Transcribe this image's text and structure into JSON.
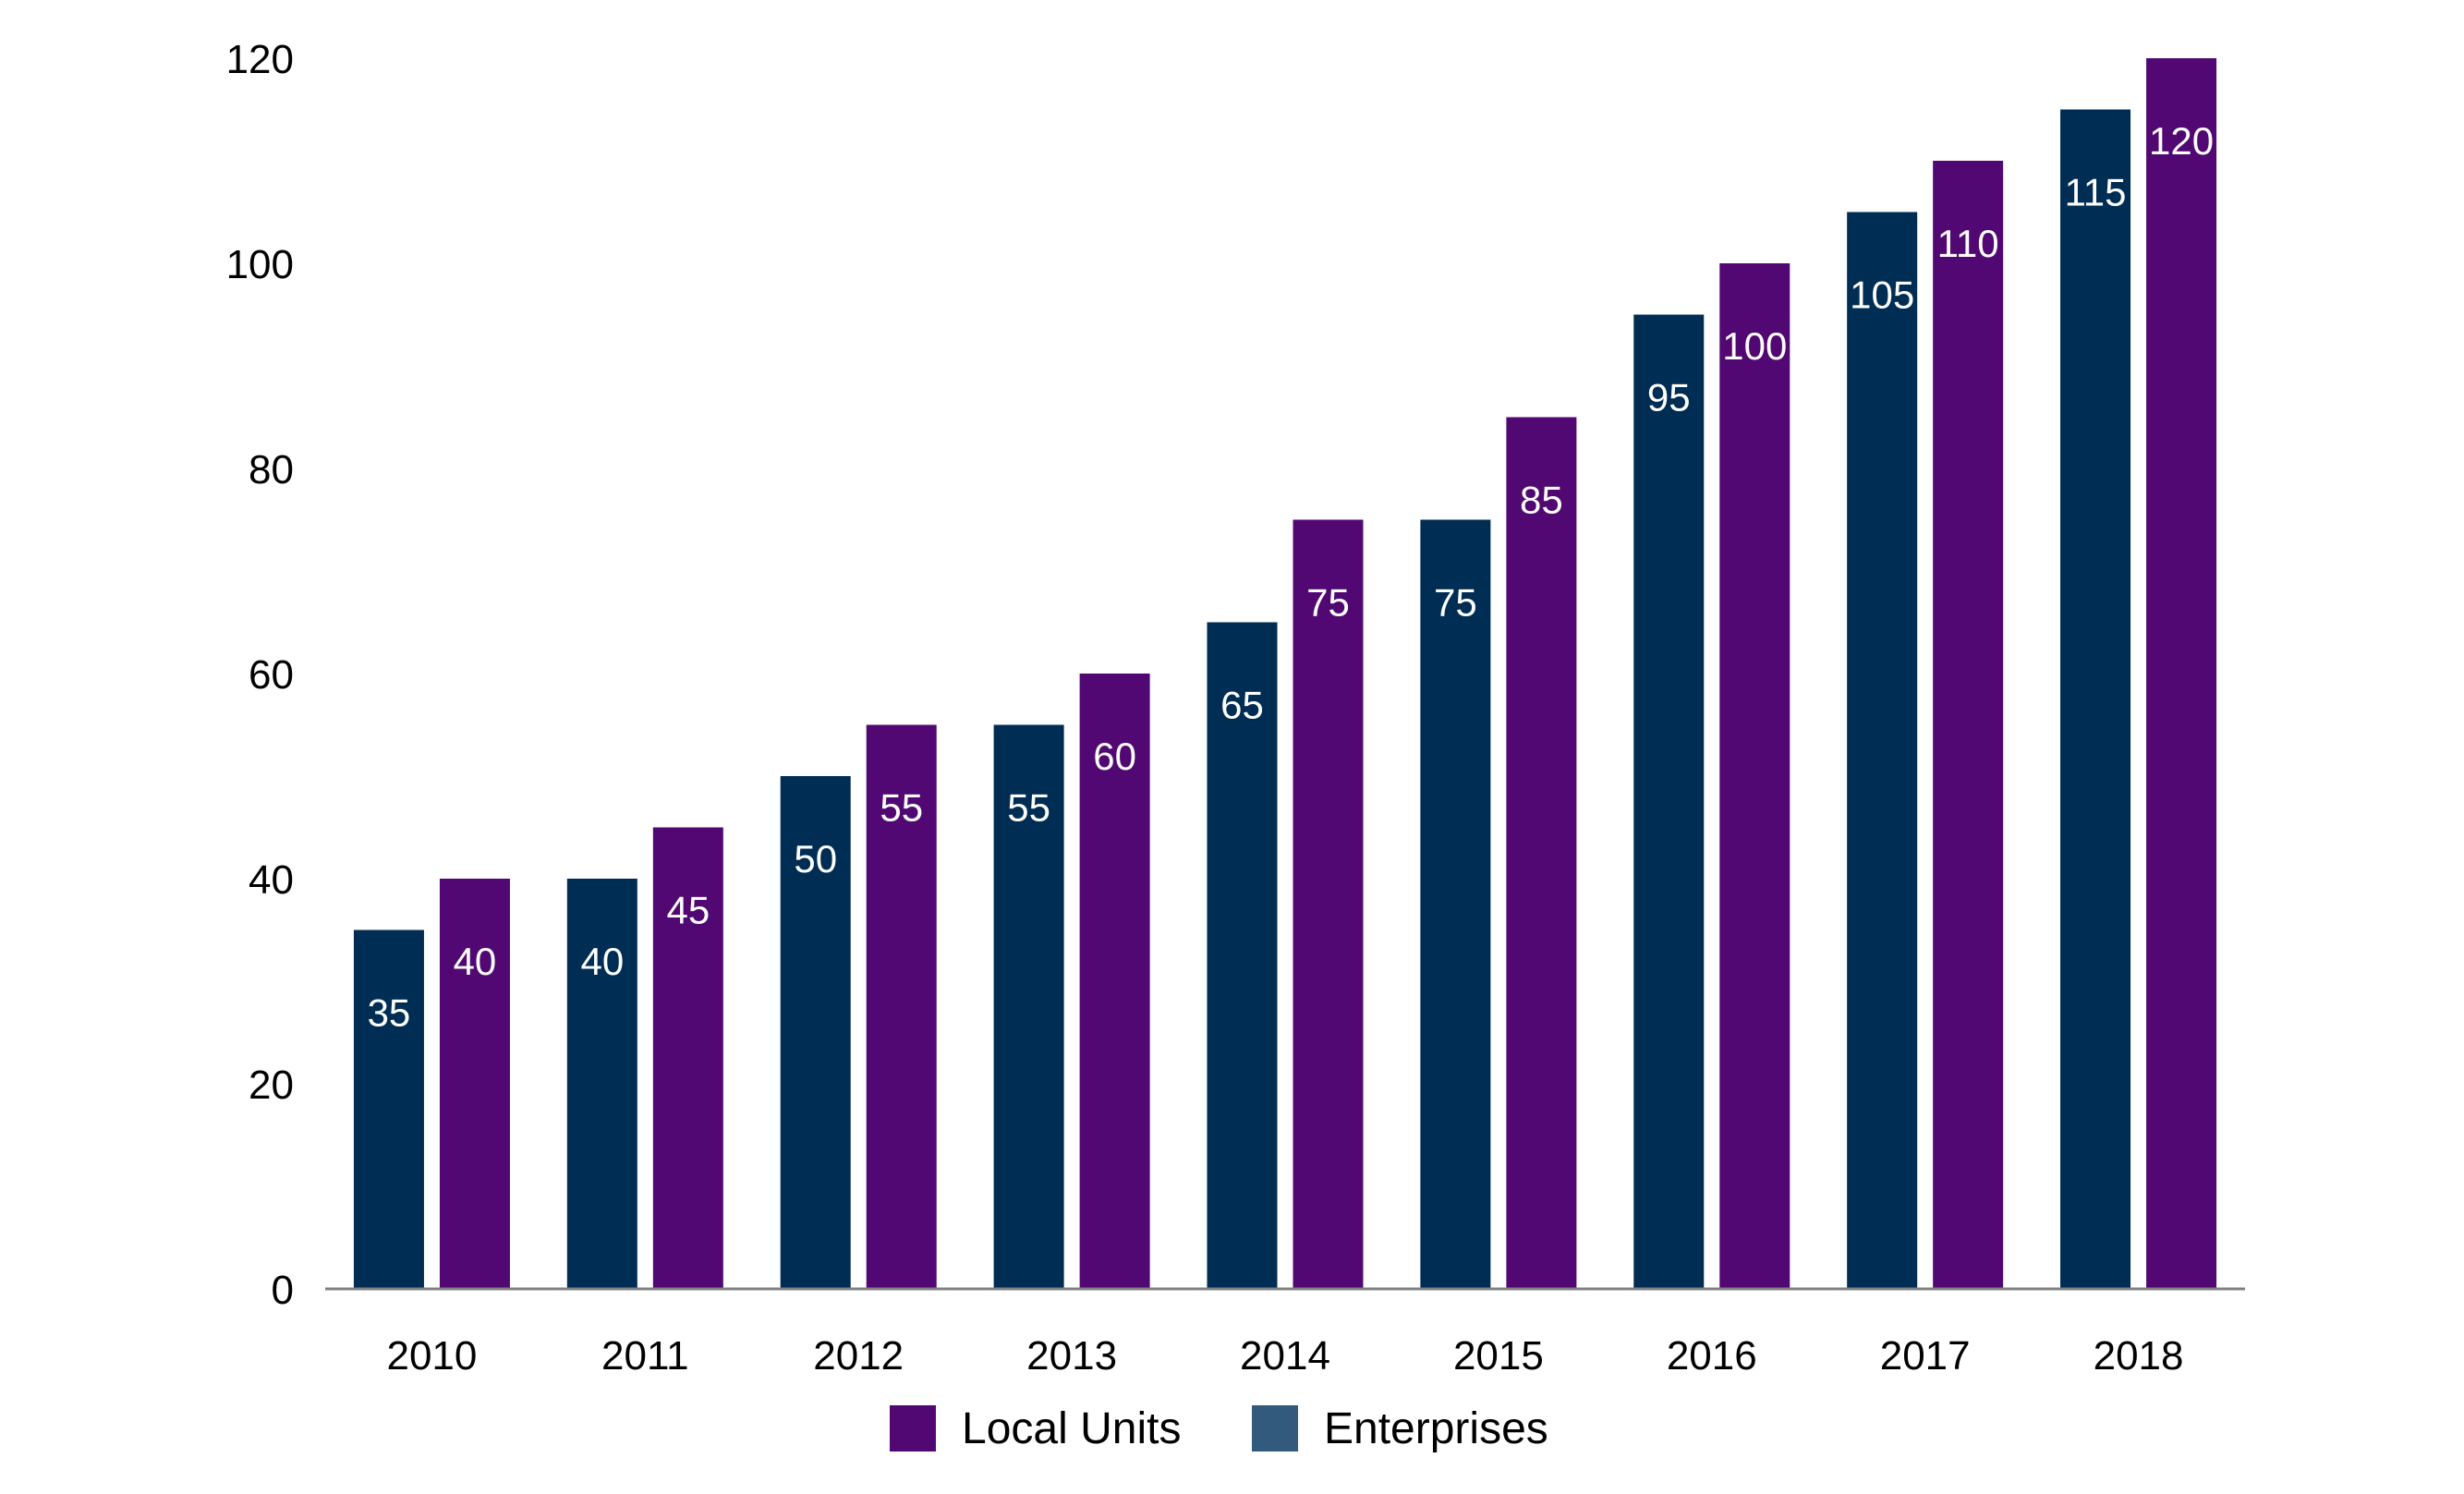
{
  "chart_data": {
    "type": "bar",
    "categories": [
      "2010",
      "2011",
      "2012",
      "2013",
      "2014",
      "2015",
      "2016",
      "2017",
      "2018"
    ],
    "series": [
      {
        "name": "Enterprises",
        "values": [
          35,
          40,
          50,
          55,
          65,
          75,
          95,
          105,
          115
        ],
        "color": "#002d54",
        "legend_color": "#325a7d"
      },
      {
        "name": "Local Units",
        "values": [
          40,
          45,
          55,
          60,
          75,
          85,
          100,
          110,
          120
        ],
        "color": "#520872",
        "legend_color": "#520872"
      }
    ],
    "title": "",
    "xlabel": "",
    "ylabel": "",
    "ylim": [
      0,
      120
    ],
    "yticks": [
      0,
      20,
      40,
      60,
      80,
      100,
      120
    ],
    "grid": false,
    "legend": {
      "position": "bottom-center",
      "order": [
        "Local Units",
        "Enterprises"
      ]
    }
  }
}
